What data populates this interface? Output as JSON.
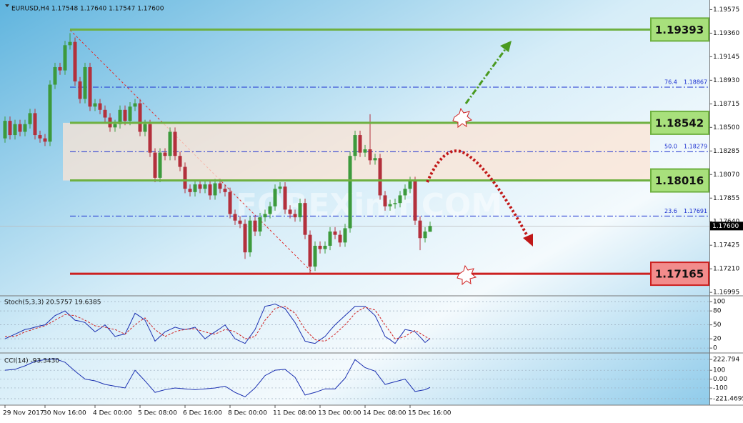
{
  "chart_data": [
    {
      "type": "candlestick",
      "title": "EURUSD,H4  1.17548 1.17640 1.17547 1.17600",
      "watermark": "FOREXimf.COM",
      "categories": [
        "29 Nov 2017",
        null,
        null,
        null,
        null,
        null,
        null,
        null,
        "30 Nov 16:00",
        null,
        null,
        null,
        null,
        null,
        null,
        null,
        null,
        null,
        "4 Dec 00:00",
        null,
        null,
        null,
        null,
        null,
        null,
        null,
        null,
        "5 Dec 08:00",
        null,
        null,
        null,
        null,
        null,
        null,
        null,
        null,
        "6 Dec 16:00",
        null,
        null,
        null,
        null,
        null,
        null,
        null,
        null,
        "8 Dec 00:00",
        null,
        null,
        null,
        null,
        null,
        null,
        null,
        null,
        "11 Dec 08:00",
        null,
        null,
        null,
        null,
        null,
        null,
        null,
        null,
        "13 Dec 00:00",
        null,
        null,
        null,
        null,
        null,
        null,
        null,
        null,
        "14 Dec 08:00",
        null,
        null,
        null,
        null,
        null,
        null,
        null,
        null,
        "15 Dec 16:00",
        null,
        null,
        null,
        null
      ],
      "open": [
        1.184,
        1.1856,
        1.1843,
        1.1853,
        1.1846,
        1.1853,
        1.1863,
        1.1843,
        1.184,
        1.1837,
        1.1889,
        1.1905,
        1.1902,
        1.1925,
        1.1928,
        1.1892,
        1.1876,
        1.1905,
        1.1869,
        1.1872,
        1.1866,
        1.1859,
        1.185,
        1.1853,
        1.1866,
        1.1856,
        1.1869,
        1.1872,
        1.1846,
        1.1853,
        1.1827,
        1.1804,
        1.1827,
        1.1824,
        1.1846,
        1.1824,
        1.1814,
        1.1794,
        1.1791,
        1.1798,
        1.1794,
        1.1798,
        1.1788,
        1.1799,
        1.1794,
        1.1791,
        1.1771,
        1.1765,
        1.1762,
        1.1736,
        1.1765,
        1.1755,
        1.1768,
        1.1771,
        1.1778,
        1.1794,
        1.1796,
        1.1775,
        1.1771,
        1.1768,
        1.1781,
        1.1752,
        1.1723,
        1.1742,
        1.1739,
        1.1742,
        1.1755,
        1.1752,
        1.1745,
        1.1758,
        1.1824,
        1.1843,
        1.1827,
        1.183,
        1.182,
        1.1822,
        1.1788,
        1.1778,
        1.178,
        1.1781,
        1.1788,
        1.1794,
        1.1801,
        1.1765,
        1.1749,
        1.17548
      ],
      "high": [
        1.186,
        1.186,
        1.1857,
        1.1857,
        1.1857,
        1.1867,
        1.1867,
        1.1847,
        1.1844,
        1.1893,
        1.1909,
        1.1909,
        1.1929,
        1.1936,
        1.1932,
        1.1896,
        1.1909,
        1.1909,
        1.1876,
        1.1876,
        1.187,
        1.1863,
        1.1857,
        1.187,
        1.187,
        1.1873,
        1.1876,
        1.1876,
        1.1857,
        1.1857,
        1.1831,
        1.1831,
        1.1831,
        1.185,
        1.185,
        1.1828,
        1.1818,
        1.1798,
        1.1802,
        1.1802,
        1.1802,
        1.1802,
        1.1803,
        1.1803,
        1.1798,
        1.1795,
        1.1775,
        1.1769,
        1.1766,
        1.1769,
        1.1769,
        1.1772,
        1.1775,
        1.1782,
        1.1798,
        1.18,
        1.18,
        1.1779,
        1.1775,
        1.1785,
        1.1785,
        1.1756,
        1.1746,
        1.1746,
        1.1746,
        1.1759,
        1.1759,
        1.1756,
        1.1762,
        1.1828,
        1.1847,
        1.1847,
        1.1834,
        1.1862,
        1.1826,
        1.1826,
        1.1792,
        1.1784,
        1.1785,
        1.1792,
        1.1798,
        1.1805,
        1.1805,
        1.1769,
        1.1759,
        1.1764
      ],
      "low": [
        1.1836,
        1.1839,
        1.1839,
        1.1842,
        1.1842,
        1.1849,
        1.1839,
        1.1836,
        1.1833,
        1.1833,
        1.1885,
        1.1898,
        1.1898,
        1.1921,
        1.1888,
        1.1872,
        1.1872,
        1.1865,
        1.1865,
        1.1862,
        1.1855,
        1.1846,
        1.1846,
        1.1849,
        1.1852,
        1.1852,
        1.1865,
        1.1842,
        1.1842,
        1.1823,
        1.18,
        1.18,
        1.182,
        1.182,
        1.182,
        1.181,
        1.179,
        1.1787,
        1.1787,
        1.179,
        1.179,
        1.1784,
        1.1784,
        1.179,
        1.1787,
        1.1767,
        1.1761,
        1.1758,
        1.173,
        1.1732,
        1.1751,
        1.1751,
        1.1764,
        1.1767,
        1.1774,
        1.179,
        1.1771,
        1.1767,
        1.1764,
        1.1764,
        1.1748,
        1.1717,
        1.1719,
        1.1735,
        1.1735,
        1.1738,
        1.1748,
        1.1741,
        1.1741,
        1.1754,
        1.182,
        1.1823,
        1.1823,
        1.1816,
        1.1816,
        1.1784,
        1.1774,
        1.1774,
        1.1776,
        1.1777,
        1.1784,
        1.179,
        1.1761,
        1.1738,
        1.1745,
        1.17547
      ],
      "close": [
        1.1856,
        1.1843,
        1.1853,
        1.1846,
        1.1853,
        1.1863,
        1.1843,
        1.184,
        1.1837,
        1.1889,
        1.1905,
        1.1902,
        1.1925,
        1.1928,
        1.1892,
        1.1876,
        1.1905,
        1.1869,
        1.1872,
        1.1866,
        1.1859,
        1.185,
        1.1853,
        1.1866,
        1.1856,
        1.1869,
        1.1872,
        1.1846,
        1.1853,
        1.1827,
        1.1804,
        1.1827,
        1.1824,
        1.1846,
        1.1824,
        1.1814,
        1.1794,
        1.1791,
        1.1798,
        1.1794,
        1.1798,
        1.1788,
        1.1799,
        1.1794,
        1.1791,
        1.1771,
        1.1765,
        1.1762,
        1.1736,
        1.1765,
        1.1755,
        1.1768,
        1.1771,
        1.1778,
        1.1794,
        1.1796,
        1.1775,
        1.1771,
        1.1768,
        1.1781,
        1.1752,
        1.1723,
        1.1742,
        1.1739,
        1.1742,
        1.1755,
        1.1752,
        1.1745,
        1.1758,
        1.1824,
        1.1843,
        1.1827,
        1.183,
        1.182,
        1.1822,
        1.1788,
        1.1778,
        1.178,
        1.1781,
        1.1788,
        1.1794,
        1.1801,
        1.1765,
        1.1749,
        1.1755,
        1.176
      ],
      "bull_color": "#3c9a3c",
      "bear_color": "#b3303c",
      "ylim": [
        1.1697,
        1.1963
      ],
      "yticks": [
        1.19575,
        {
          "value": 1.1936,
          "label": "1.19360"
        },
        1.19145,
        {
          "value": 1.1893,
          "label": "1.18930"
        },
        1.18715,
        {
          "value": 1.185,
          "label": "1.18500"
        },
        1.18285,
        {
          "value": 1.1807,
          "label": "1.18070"
        },
        1.17855,
        {
          "value": 1.1764,
          "label": "1.17640"
        },
        1.17425,
        {
          "value": 1.1721,
          "label": "1.17210"
        },
        1.16995
      ],
      "current_price": {
        "value": 1.176,
        "label": "1.17600"
      },
      "levels": [
        {
          "value": 1.19393,
          "color": "#6eb040",
          "fill": "#a8e07c"
        },
        {
          "value": 1.18542,
          "color": "#6eb040",
          "fill": "#a8e07c"
        },
        {
          "value": 1.18016,
          "color": "#6eb040",
          "fill": "#a8e07c"
        },
        {
          "value": 1.17165,
          "color": "#cc2020",
          "fill": "#f28c8c"
        }
      ],
      "fibonacci": [
        {
          "level": "76.4",
          "price": 1.18867
        },
        {
          "level": "50.0",
          "price": 1.18279
        },
        {
          "level": "23.6",
          "price": 1.17691
        }
      ]
    },
    {
      "type": "line",
      "title": "Stoch(5,3,3) 20.5757 19.6385",
      "ylim": [
        -9,
        111
      ],
      "yticks": [
        100,
        80,
        50,
        20,
        0
      ],
      "series": [
        {
          "color": "#1a2fb0",
          "dash": false,
          "values": [
            20,
            25,
            30,
            35,
            40,
            42,
            45,
            48,
            50,
            60,
            70,
            75,
            80,
            70,
            60,
            58,
            55,
            45,
            35,
            42,
            50,
            38,
            25,
            28,
            30,
            52,
            75,
            68,
            60,
            38,
            15,
            25,
            35,
            40,
            45,
            42,
            40,
            42,
            45,
            32,
            20,
            28,
            35,
            42,
            50,
            35,
            20,
            15,
            10,
            25,
            40,
            65,
            90,
            92,
            95,
            90,
            85,
            70,
            55,
            35,
            15,
            12,
            10,
            18,
            25,
            38,
            50,
            60,
            70,
            80,
            90,
            90,
            90,
            80,
            70,
            48,
            25,
            18,
            10,
            25,
            40,
            38,
            35,
            24,
            12,
            20.5757
          ]
        },
        {
          "color": "#d02020",
          "dash": true,
          "values": [
            25,
            25,
            25,
            30,
            35,
            38,
            42,
            45,
            48,
            54,
            60,
            66,
            72,
            71,
            70,
            65,
            60,
            54,
            48,
            46,
            45,
            42,
            40,
            35,
            30,
            40,
            50,
            58,
            65,
            52,
            40,
            32,
            25,
            30,
            35,
            38,
            40,
            41,
            42,
            38,
            35,
            32,
            30,
            35,
            40,
            38,
            35,
            28,
            20,
            22,
            25,
            42,
            60,
            72,
            85,
            88,
            90,
            82,
            75,
            58,
            40,
            29,
            18,
            16,
            15,
            22,
            30,
            40,
            50,
            62,
            75,
            82,
            88,
            85,
            82,
            66,
            50,
            35,
            20,
            22,
            25,
            32,
            38,
            32,
            25,
            19.6385
          ]
        }
      ]
    },
    {
      "type": "line",
      "title": "CCI(14) -93.3430",
      "ylim": [
        -286,
        287
      ],
      "yticks": [
        222.794,
        100,
        {
          "value": 0,
          "label": "0.00"
        },
        -100,
        -221.4695
      ],
      "series": [
        {
          "color": "#1a2fb0",
          "dash": false,
          "values": [
            100,
            105,
            110,
            130,
            150,
            175,
            200,
            210,
            220,
            225,
            230,
            210,
            190,
            140,
            90,
            45,
            0,
            -10,
            -20,
            -40,
            -60,
            -70,
            -80,
            -90,
            -100,
            0,
            100,
            40,
            -20,
            -85,
            -150,
            -135,
            -120,
            -110,
            -100,
            -105,
            -110,
            -115,
            -120,
            -115,
            -110,
            -105,
            -100,
            -90,
            -80,
            -115,
            -150,
            -175,
            -200,
            -150,
            -100,
            -30,
            40,
            70,
            100,
            105,
            110,
            65,
            20,
            -80,
            -180,
            -165,
            -150,
            -130,
            -110,
            -110,
            -110,
            -50,
            10,
            115,
            220,
            175,
            130,
            110,
            90,
            15,
            -60,
            -45,
            -30,
            -15,
            0,
            -70,
            -140,
            -130,
            -120,
            -93.343
          ]
        }
      ]
    }
  ]
}
